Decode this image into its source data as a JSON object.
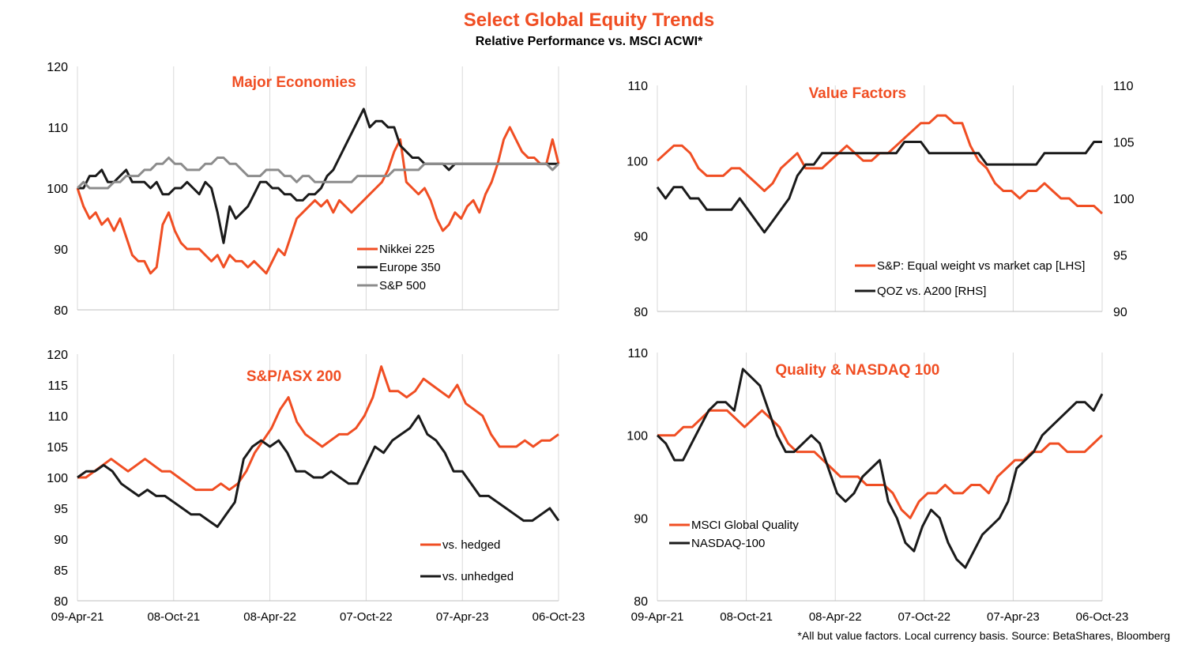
{
  "title": "Select Global Equity Trends",
  "subtitle": "Relative Performance vs. MSCI ACWI*",
  "footnote": "*All but value factors. Local currency basis.  Source: BetaShares, Bloomberg",
  "colors": {
    "orange": "#F04E23",
    "black": "#1A1A1A",
    "grey": "#8C8C8C",
    "accent": "#F04E23"
  },
  "x_tick_labels": [
    "09-Apr-21",
    "08-Oct-21",
    "08-Apr-22",
    "07-Oct-22",
    "07-Apr-23",
    "06-Oct-23"
  ],
  "chart_data": [
    {
      "type": "line",
      "title": "Major Economies",
      "ylim": [
        80,
        120
      ],
      "yticks": [
        80,
        90,
        100,
        110,
        120
      ],
      "x_tick_labels": [],
      "legend_position": "bottom-center",
      "series": [
        {
          "name": "Nikkei 225",
          "color": "#F04E23",
          "values": [
            100,
            97,
            95,
            96,
            94,
            95,
            93,
            95,
            92,
            89,
            88,
            88,
            86,
            87,
            94,
            96,
            93,
            91,
            90,
            90,
            90,
            89,
            88,
            89,
            87,
            89,
            88,
            88,
            87,
            88,
            87,
            86,
            88,
            90,
            89,
            92,
            95,
            96,
            97,
            98,
            97,
            98,
            96,
            98,
            97,
            96,
            97,
            98,
            99,
            100,
            101,
            103,
            106,
            108,
            101,
            100,
            99,
            100,
            98,
            95,
            93,
            94,
            96,
            95,
            97,
            98,
            96,
            99,
            101,
            104,
            108,
            110,
            108,
            106,
            105,
            105,
            104,
            104,
            108,
            104
          ]
        },
        {
          "name": "Europe 350",
          "color": "#1A1A1A",
          "values": [
            100,
            100,
            102,
            102,
            103,
            101,
            101,
            102,
            103,
            101,
            101,
            101,
            100,
            101,
            99,
            99,
            100,
            100,
            101,
            100,
            99,
            101,
            100,
            96,
            91,
            97,
            95,
            96,
            97,
            99,
            101,
            101,
            100,
            100,
            99,
            99,
            98,
            98,
            99,
            99,
            100,
            102,
            103,
            105,
            107,
            109,
            111,
            113,
            110,
            111,
            111,
            110,
            110,
            107,
            106,
            105,
            105,
            104,
            104,
            104,
            104,
            103,
            104,
            104,
            104,
            104,
            104,
            104,
            104,
            104,
            104,
            104,
            104,
            104,
            104,
            104,
            104,
            104,
            104,
            104
          ]
        },
        {
          "name": "S&P 500",
          "color": "#8C8C8C",
          "values": [
            100,
            101,
            100,
            100,
            100,
            100,
            101,
            101,
            102,
            102,
            102,
            103,
            103,
            104,
            104,
            105,
            104,
            104,
            103,
            103,
            103,
            104,
            104,
            105,
            105,
            104,
            104,
            103,
            102,
            102,
            102,
            103,
            103,
            103,
            102,
            102,
            101,
            102,
            102,
            101,
            101,
            101,
            101,
            101,
            101,
            101,
            102,
            102,
            102,
            102,
            102,
            102,
            103,
            103,
            103,
            103,
            103,
            104,
            104,
            104,
            104,
            104,
            104,
            104,
            104,
            104,
            104,
            104,
            104,
            104,
            104,
            104,
            104,
            104,
            104,
            104,
            104,
            104,
            103,
            104
          ]
        }
      ]
    },
    {
      "type": "line",
      "title": "Value Factors",
      "ylim": [
        80,
        110
      ],
      "yticks": [
        80,
        90,
        100,
        110
      ],
      "ylim_right": [
        90,
        110
      ],
      "yticks_right": [
        90,
        95,
        100,
        105,
        110
      ],
      "x_tick_labels": [],
      "legend_position": "bottom-right",
      "series": [
        {
          "name": "S&P: Equal weight vs market cap [LHS]",
          "color": "#F04E23",
          "axis": "left",
          "values": [
            100,
            101,
            102,
            102,
            101,
            99,
            98,
            98,
            98,
            99,
            99,
            98,
            97,
            96,
            97,
            99,
            100,
            101,
            99,
            99,
            99,
            100,
            101,
            102,
            101,
            100,
            100,
            101,
            101,
            102,
            103,
            104,
            105,
            105,
            106,
            106,
            105,
            105,
            102,
            100,
            99,
            97,
            96,
            96,
            95,
            96,
            96,
            97,
            96,
            95,
            95,
            94,
            94,
            94,
            93
          ]
        },
        {
          "name": "QOZ vs. A200 [RHS]",
          "color": "#1A1A1A",
          "axis": "right",
          "values": [
            101,
            100,
            101,
            101,
            100,
            100,
            99,
            99,
            99,
            99,
            100,
            99,
            98,
            97,
            98,
            99,
            100,
            102,
            103,
            103,
            104,
            104,
            104,
            104,
            104,
            104,
            104,
            104,
            104,
            104,
            105,
            105,
            105,
            104,
            104,
            104,
            104,
            104,
            104,
            104,
            103,
            103,
            103,
            103,
            103,
            103,
            103,
            104,
            104,
            104,
            104,
            104,
            104,
            105,
            105
          ]
        }
      ]
    },
    {
      "type": "line",
      "title": "S&P/ASX 200",
      "ylim": [
        80,
        120
      ],
      "yticks": [
        80,
        85,
        90,
        95,
        100,
        105,
        110,
        115,
        120
      ],
      "x_tick_labels": [
        "09-Apr-21",
        "08-Oct-21",
        "08-Apr-22",
        "07-Oct-22",
        "07-Apr-23",
        "06-Oct-23"
      ],
      "legend_position": "bottom-right",
      "series": [
        {
          "name": "vs. hedged",
          "color": "#F04E23",
          "values": [
            100,
            100,
            101,
            102,
            103,
            102,
            101,
            102,
            103,
            102,
            101,
            101,
            100,
            99,
            98,
            98,
            98,
            99,
            98,
            99,
            101,
            104,
            106,
            108,
            111,
            113,
            109,
            107,
            106,
            105,
            106,
            107,
            107,
            108,
            110,
            113,
            118,
            114,
            114,
            113,
            114,
            116,
            115,
            114,
            113,
            115,
            112,
            111,
            110,
            107,
            105,
            105,
            105,
            106,
            105,
            106,
            106,
            107
          ]
        },
        {
          "name": "vs. unhedged",
          "color": "#1A1A1A",
          "values": [
            100,
            101,
            101,
            102,
            101,
            99,
            98,
            97,
            98,
            97,
            97,
            96,
            95,
            94,
            94,
            93,
            92,
            94,
            96,
            103,
            105,
            106,
            105,
            106,
            104,
            101,
            101,
            100,
            100,
            101,
            100,
            99,
            99,
            102,
            105,
            104,
            106,
            107,
            108,
            110,
            107,
            106,
            104,
            101,
            101,
            99,
            97,
            97,
            96,
            95,
            94,
            93,
            93,
            94,
            95,
            93
          ]
        }
      ]
    },
    {
      "type": "line",
      "title": "Quality & NASDAQ 100",
      "ylim": [
        80,
        110
      ],
      "yticks": [
        80,
        90,
        100,
        110
      ],
      "x_tick_labels": [
        "09-Apr-21",
        "08-Oct-21",
        "08-Apr-22",
        "07-Oct-22",
        "07-Apr-23",
        "06-Oct-23"
      ],
      "legend_position": "bottom-left",
      "series": [
        {
          "name": "MSCI Global Quality",
          "color": "#F04E23",
          "values": [
            100,
            100,
            100,
            101,
            101,
            102,
            103,
            103,
            103,
            102,
            101,
            102,
            103,
            102,
            101,
            99,
            98,
            98,
            98,
            97,
            96,
            95,
            95,
            95,
            94,
            94,
            94,
            93,
            91,
            90,
            92,
            93,
            93,
            94,
            93,
            93,
            94,
            94,
            93,
            95,
            96,
            97,
            97,
            98,
            98,
            99,
            99,
            98,
            98,
            98,
            99,
            100
          ]
        },
        {
          "name": "NASDAQ-100",
          "color": "#1A1A1A",
          "values": [
            100,
            99,
            97,
            97,
            99,
            101,
            103,
            104,
            104,
            103,
            108,
            107,
            106,
            103,
            100,
            98,
            98,
            99,
            100,
            99,
            96,
            93,
            92,
            93,
            95,
            96,
            97,
            92,
            90,
            87,
            86,
            89,
            91,
            90,
            87,
            85,
            84,
            86,
            88,
            89,
            90,
            92,
            96,
            97,
            98,
            100,
            101,
            102,
            103,
            104,
            104,
            103,
            105
          ]
        }
      ]
    }
  ]
}
